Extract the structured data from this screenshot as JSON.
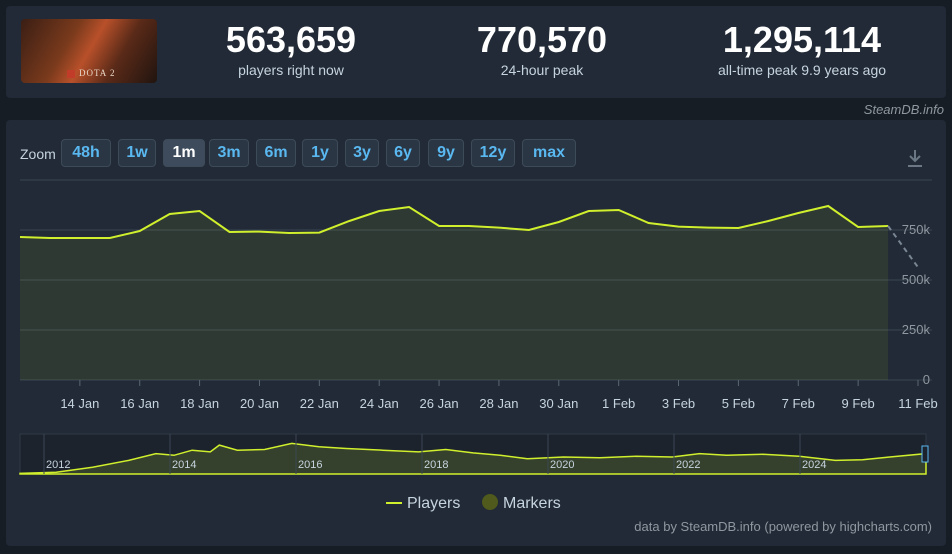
{
  "game": {
    "logo_text": "DOTA 2"
  },
  "stats": [
    {
      "value": "563,659",
      "label": "players right now"
    },
    {
      "value": "770,570",
      "label": "24-hour peak"
    },
    {
      "value": "1,295,114",
      "label": "all-time peak 9.9 years ago"
    }
  ],
  "source_credit": "SteamDB.info",
  "zoom": {
    "label": "Zoom",
    "options": [
      "48h",
      "1w",
      "1m",
      "3m",
      "6m",
      "1y",
      "3y",
      "6y",
      "9y",
      "12y",
      "max"
    ],
    "active": "1m"
  },
  "footer_credit": "data by SteamDB.info (powered by highcharts.com)",
  "colors": {
    "line": "#d0ef2c",
    "marker": "#4f5a1c",
    "background": "#212a36"
  },
  "chart_data": {
    "type": "line",
    "x_tick_labels": [
      "14 Jan",
      "16 Jan",
      "18 Jan",
      "20 Jan",
      "22 Jan",
      "24 Jan",
      "26 Jan",
      "28 Jan",
      "30 Jan",
      "1 Feb",
      "3 Feb",
      "5 Feb",
      "7 Feb",
      "9 Feb",
      "11 Feb"
    ],
    "y_tick_labels": [
      "750k",
      "500k",
      "250k",
      "0"
    ],
    "y_ticks": [
      750000,
      500000,
      250000,
      0
    ],
    "ylim": [
      0,
      1000000
    ],
    "grid": true,
    "legend_position": "bottom-center",
    "series": [
      {
        "name": "Players",
        "points": [
          [
            "12 Jan",
            715000
          ],
          [
            "13 Jan",
            710000
          ],
          [
            "14 Jan",
            710000
          ],
          [
            "15 Jan",
            710000
          ],
          [
            "16 Jan",
            745000
          ],
          [
            "17 Jan",
            830000
          ],
          [
            "18 Jan",
            845000
          ],
          [
            "19 Jan",
            740000
          ],
          [
            "20 Jan",
            742000
          ],
          [
            "21 Jan",
            735000
          ],
          [
            "22 Jan",
            737000
          ],
          [
            "23 Jan",
            795000
          ],
          [
            "24 Jan",
            845000
          ],
          [
            "25 Jan",
            865000
          ],
          [
            "26 Jan",
            770000
          ],
          [
            "27 Jan",
            770000
          ],
          [
            "28 Jan",
            762000
          ],
          [
            "29 Jan",
            750000
          ],
          [
            "30 Jan",
            790000
          ],
          [
            "31 Jan",
            845000
          ],
          [
            "1 Feb",
            850000
          ],
          [
            "2 Feb",
            785000
          ],
          [
            "3 Feb",
            767000
          ],
          [
            "4 Feb",
            762000
          ],
          [
            "5 Feb",
            760000
          ],
          [
            "6 Feb",
            795000
          ],
          [
            "7 Feb",
            835000
          ],
          [
            "8 Feb",
            870000
          ],
          [
            "9 Feb",
            765000
          ],
          [
            "10 Feb",
            770000
          ]
        ],
        "projection": [
          [
            "10 Feb",
            770000
          ],
          [
            "11 Feb",
            563659
          ]
        ]
      }
    ],
    "navigator": {
      "x_tick_labels": [
        "2012",
        "2014",
        "2016",
        "2018",
        "2020",
        "2022",
        "2024"
      ]
    },
    "legend": [
      "Players",
      "Markers"
    ]
  }
}
